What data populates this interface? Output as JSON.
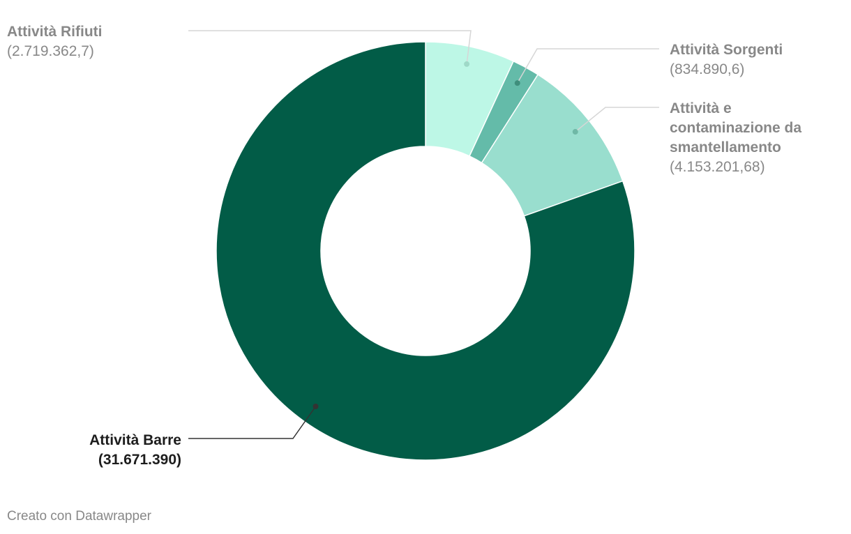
{
  "chart_data": {
    "type": "pie",
    "variant": "donut",
    "legend": "none",
    "slices": [
      {
        "name": "Attività Rifiuti",
        "value": 2719362.7,
        "value_label": "(2.719.362,7)",
        "color": "#bdf7e6",
        "label_color": "#888888",
        "label_lines": [
          "Attività Rifiuti"
        ]
      },
      {
        "name": "Attività Sorgenti",
        "value": 834890.6,
        "value_label": "(834.890,6)",
        "color": "#64bba9",
        "label_color": "#888888",
        "label_lines": [
          "Attività Sorgenti"
        ]
      },
      {
        "name": "Attività e contaminazione da smantellamento",
        "value": 4153201.68,
        "value_label": "(4.153.201,68)",
        "color": "#99dece",
        "label_color": "#888888",
        "label_lines": [
          "Attività e",
          "contaminazione da",
          "smantellamento"
        ]
      },
      {
        "name": "Attività Barre",
        "value": 31671390,
        "value_label": "(31.671.390)",
        "color": "#025c47",
        "label_color": "#1d1d1d",
        "label_lines": [
          "Attività Barre"
        ]
      }
    ]
  },
  "footer": {
    "credit": "Creato con Datawrapper"
  }
}
